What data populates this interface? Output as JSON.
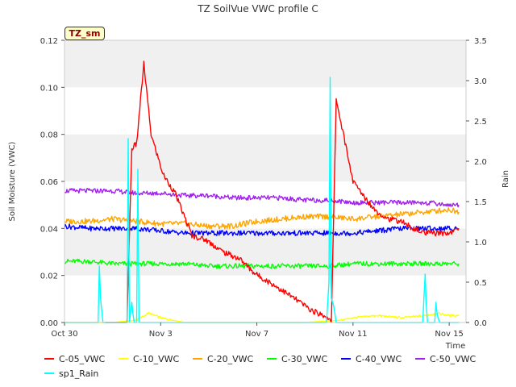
{
  "badge": "TZ_sm",
  "chart_data": {
    "type": "line",
    "title": "TZ SoilVue VWC profile C",
    "ylabel": "Soil Moisture (VWC)",
    "y2label": "Rain",
    "xlabel": "Time",
    "x_range": [
      "Oct 30",
      "Nov 16"
    ],
    "ylim": [
      0,
      0.12
    ],
    "y2lim": [
      0,
      3.5
    ],
    "x_ticks": [
      "Oct 30",
      "Nov 3",
      "Nov 7",
      "Nov 11",
      "Nov 15"
    ],
    "y_ticks": [
      "0.00",
      "0.02",
      "0.04",
      "0.06",
      "0.08",
      "0.10",
      "0.12"
    ],
    "y2_ticks": [
      "0.0",
      "0.5",
      "1.0",
      "1.5",
      "2.0",
      "2.5",
      "3.0",
      "3.5"
    ],
    "background_bands": "alternating light gray",
    "series": [
      {
        "name": "C-05_VWC",
        "color": "#ff0000",
        "axis": "left",
        "x": [
          1.7,
          2.6,
          2.8,
          3.0,
          3.3,
          3.6,
          4.1,
          4.6,
          5.3,
          5.9,
          6.6,
          7.3,
          7.9,
          8.7,
          9.6,
          10.3,
          11.0,
          11.1,
          11.3,
          11.6,
          12.0,
          12.5,
          13.0,
          13.5,
          14.0,
          14.5,
          15.0,
          15.5,
          16.0,
          16.4
        ],
        "y": [
          0.0,
          0.0,
          0.074,
          0.076,
          0.11,
          0.08,
          0.063,
          0.055,
          0.037,
          0.035,
          0.03,
          0.027,
          0.021,
          0.016,
          0.01,
          0.005,
          0.002,
          0.0,
          0.095,
          0.08,
          0.06,
          0.053,
          0.047,
          0.044,
          0.043,
          0.04,
          0.038,
          0.038,
          0.038,
          0.04
        ]
      },
      {
        "name": "C-10_VWC",
        "color": "#ffff00",
        "axis": "left",
        "x": [
          0,
          2,
          3.0,
          3.5,
          4.0,
          5,
          6,
          7,
          8,
          9,
          10,
          11.5,
          12,
          13,
          14,
          15,
          15.5,
          16.0,
          16.4
        ],
        "y": [
          0.0,
          0.0,
          0.001,
          0.004,
          0.002,
          0.0,
          0.0,
          0.0,
          0.0,
          0.0,
          0.0,
          0.001,
          0.002,
          0.003,
          0.002,
          0.003,
          0.004,
          0.003,
          0.003
        ]
      },
      {
        "name": "C-20_VWC",
        "color": "#ffa500",
        "axis": "left",
        "x": [
          0,
          1,
          2,
          3,
          4,
          5,
          6,
          7,
          8,
          9,
          10,
          11,
          12,
          13,
          14,
          15,
          16,
          16.4
        ],
        "y": [
          0.043,
          0.043,
          0.044,
          0.043,
          0.042,
          0.042,
          0.041,
          0.041,
          0.043,
          0.044,
          0.045,
          0.045,
          0.044,
          0.045,
          0.046,
          0.047,
          0.048,
          0.047
        ]
      },
      {
        "name": "C-30_VWC",
        "color": "#00ff00",
        "axis": "left",
        "x": [
          0,
          1,
          2,
          3,
          4,
          5,
          6,
          7,
          8,
          9,
          10,
          11,
          12,
          13,
          14,
          15,
          16,
          16.4
        ],
        "y": [
          0.026,
          0.026,
          0.025,
          0.025,
          0.025,
          0.025,
          0.024,
          0.024,
          0.024,
          0.024,
          0.024,
          0.024,
          0.025,
          0.025,
          0.025,
          0.025,
          0.025,
          0.025
        ]
      },
      {
        "name": "C-40_VWC",
        "color": "#0000ff",
        "axis": "left",
        "x": [
          0,
          1,
          2,
          3,
          4,
          5,
          6,
          7,
          8,
          9,
          10,
          11,
          12,
          13,
          14,
          15,
          16,
          16.4
        ],
        "y": [
          0.041,
          0.04,
          0.04,
          0.04,
          0.039,
          0.038,
          0.038,
          0.038,
          0.038,
          0.038,
          0.038,
          0.038,
          0.038,
          0.039,
          0.04,
          0.04,
          0.04,
          0.04
        ]
      },
      {
        "name": "C-50_VWC",
        "color": "#a020f0",
        "axis": "left",
        "x": [
          0,
          1,
          2,
          3,
          4,
          5,
          6,
          7,
          8,
          9,
          10,
          11,
          12,
          13,
          14,
          15,
          16,
          16.4
        ],
        "y": [
          0.056,
          0.056,
          0.056,
          0.055,
          0.055,
          0.054,
          0.054,
          0.053,
          0.053,
          0.053,
          0.052,
          0.052,
          0.051,
          0.051,
          0.051,
          0.051,
          0.05,
          0.05
        ]
      },
      {
        "name": "sp1_Rain",
        "color": "#00ffff",
        "axis": "right",
        "x": [
          0,
          1.4,
          1.45,
          1.5,
          1.6,
          2.5,
          2.6,
          2.65,
          2.7,
          2.8,
          2.85,
          2.9,
          3.0,
          3.05,
          3.1,
          3.2,
          3.3,
          3.4,
          10.9,
          11.0,
          11.05,
          11.1,
          11.2,
          11.3,
          14.9,
          15.0,
          15.05,
          15.1,
          15.4,
          15.45,
          15.5,
          15.6,
          16.4
        ],
        "y": [
          0,
          0,
          0.7,
          0.3,
          0,
          0,
          0,
          2.28,
          0,
          0.25,
          0.1,
          0,
          0,
          1.9,
          0,
          0,
          0,
          0,
          0,
          0.5,
          3.04,
          0.3,
          0.2,
          0,
          0,
          0.6,
          0.2,
          0,
          0,
          0.25,
          0.1,
          0,
          0
        ]
      }
    ]
  }
}
